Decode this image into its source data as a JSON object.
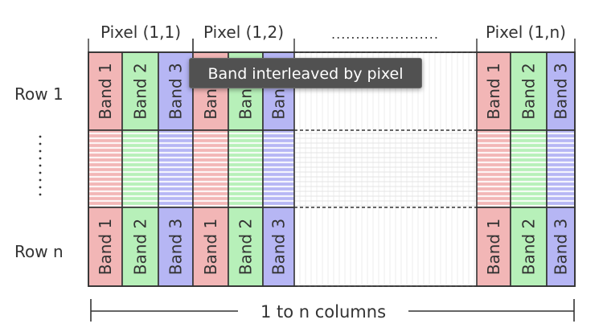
{
  "pixel_labels": [
    "Pixel (1,1)",
    "Pixel (1,2)",
    "Pixel (1,n)"
  ],
  "row_labels": [
    "Row 1",
    "Row n"
  ],
  "row_ellipsis": ":",
  "column_ellipsis": "......................",
  "band_labels": [
    "Band 1",
    "Band 2",
    "Band 3"
  ],
  "bottom_label": "1 to n columns",
  "tooltip": "Band interleaved by pixel",
  "colors": {
    "band1": "#f2b6b6",
    "band2": "#b7f0b9",
    "band3": "#b6b6f4",
    "border": "#333333",
    "text": "#333333"
  }
}
